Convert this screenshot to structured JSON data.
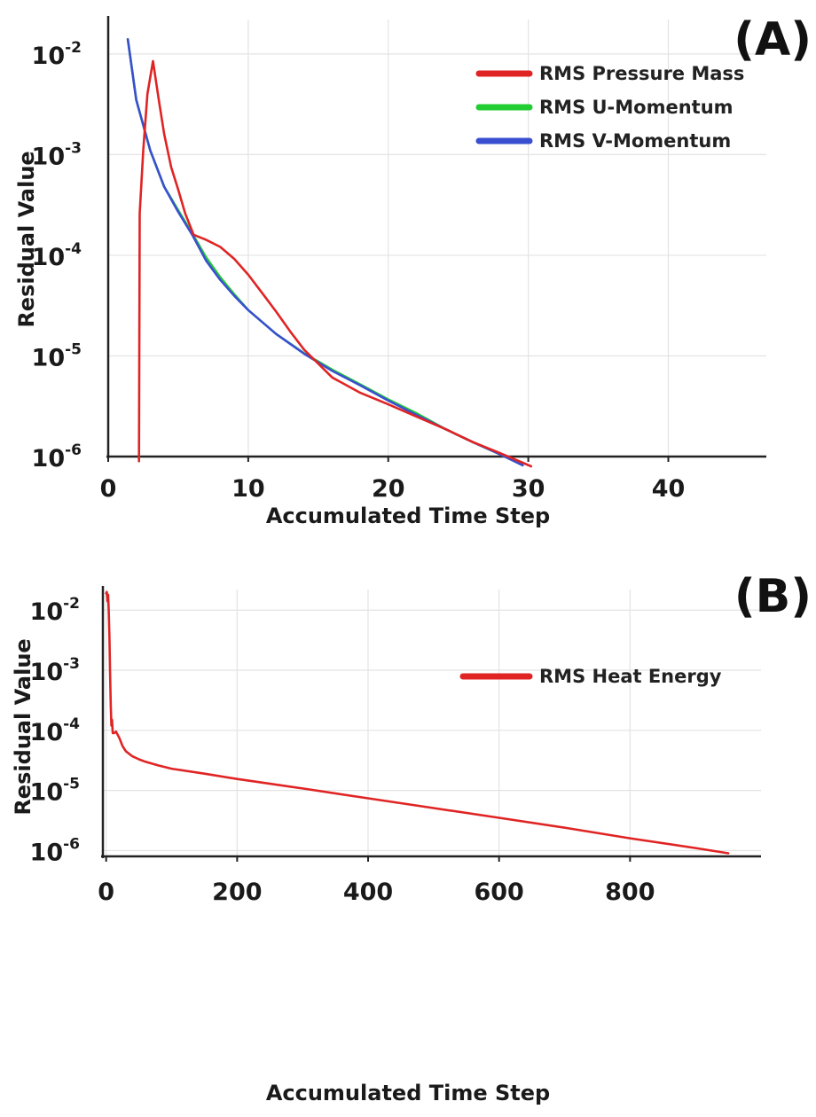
{
  "chart_data": [
    {
      "panel_label": "(A)",
      "type": "line",
      "xlabel": "Accumulated Time Step",
      "ylabel": "Residual Value",
      "xlim": [
        0,
        47
      ],
      "ylim": [
        1e-06,
        0.022
      ],
      "log_y": true,
      "grid": true,
      "legend_position": "top-right",
      "x_ticks": [
        {
          "value": 0,
          "label": "0"
        },
        {
          "value": 10,
          "label": "10"
        },
        {
          "value": 20,
          "label": "20"
        },
        {
          "value": 30,
          "label": "30"
        },
        {
          "value": 40,
          "label": "40"
        }
      ],
      "y_ticks": [
        {
          "value": 1e-06,
          "label": "10",
          "exp": "-6"
        },
        {
          "value": 1e-05,
          "label": "10",
          "exp": "-5"
        },
        {
          "value": 0.0001,
          "label": "10",
          "exp": "-4"
        },
        {
          "value": 0.001,
          "label": "10",
          "exp": "-3"
        },
        {
          "value": 0.01,
          "label": "10",
          "exp": "-2"
        }
      ],
      "series": [
        {
          "name": "RMS U-Momentum",
          "color": "#22cc33",
          "x": [
            1.4,
            2,
            3,
            4,
            5,
            6,
            7,
            8,
            9,
            10,
            12,
            14,
            16,
            18,
            20,
            22,
            24,
            26,
            28,
            29.6
          ],
          "y": [
            0.014,
            0.0035,
            0.0011,
            0.00048,
            0.00028,
            0.000165,
            9.5e-05,
            6.05e-05,
            4.1e-05,
            2.85e-05,
            1.65e-05,
            1.06e-05,
            7.3e-06,
            5.2e-06,
            3.7e-06,
            2.7e-06,
            1.9e-06,
            1.4e-06,
            1.05e-06,
            8.2e-07
          ]
        },
        {
          "name": "RMS V-Momentum",
          "color": "#3a4fd0",
          "x": [
            1.4,
            2,
            3,
            4,
            5,
            6,
            7,
            8,
            9,
            10,
            12,
            14,
            16,
            18,
            20,
            22,
            24,
            26,
            28,
            29.6
          ],
          "y": [
            0.014,
            0.0035,
            0.0011,
            0.00048,
            0.00027,
            0.00016,
            8.8e-05,
            5.7e-05,
            3.95e-05,
            2.85e-05,
            1.65e-05,
            1.05e-05,
            7.1e-06,
            5.1e-06,
            3.6e-06,
            2.6e-06,
            1.9e-06,
            1.4e-06,
            1.05e-06,
            8.2e-07
          ]
        },
        {
          "name": "RMS Pressure Mass",
          "color": "#e02424",
          "x": [
            2.2,
            2.25,
            2.5,
            2.8,
            3.2,
            3.6,
            4,
            4.5,
            5,
            5.5,
            6.1,
            7,
            8,
            9,
            10,
            11,
            12,
            13,
            14,
            16,
            18,
            20,
            22,
            24,
            26,
            28,
            30.2
          ],
          "y": [
            9e-07,
            0.00026,
            0.0011,
            0.004,
            0.0085,
            0.0036,
            0.0016,
            0.00075,
            0.00045,
            0.00026,
            0.00016,
            0.000142,
            0.000121,
            9.2e-05,
            6.4e-05,
            4.2e-05,
            2.75e-05,
            1.75e-05,
            1.15e-05,
            6.1e-06,
            4.3e-06,
            3.3e-06,
            2.5e-06,
            1.9e-06,
            1.4e-06,
            1.08e-06,
            8e-07
          ]
        }
      ]
    },
    {
      "panel_label": "(B)",
      "type": "line",
      "xlabel": "Accumulated Time Step",
      "ylabel": "Residual Value",
      "xlim": [
        -5,
        1000
      ],
      "ylim": [
        8e-07,
        0.022
      ],
      "log_y": true,
      "grid": true,
      "legend_position": "top-right",
      "x_ticks": [
        {
          "value": 0,
          "label": "0"
        },
        {
          "value": 200,
          "label": "200"
        },
        {
          "value": 400,
          "label": "400"
        },
        {
          "value": 600,
          "label": "600"
        },
        {
          "value": 800,
          "label": "800"
        }
      ],
      "y_ticks": [
        {
          "value": 1e-06,
          "label": "10",
          "exp": "-6"
        },
        {
          "value": 1e-05,
          "label": "10",
          "exp": "-5"
        },
        {
          "value": 0.0001,
          "label": "10",
          "exp": "-4"
        },
        {
          "value": 0.001,
          "label": "10",
          "exp": "-3"
        },
        {
          "value": 0.01,
          "label": "10",
          "exp": "-2"
        }
      ],
      "series": [
        {
          "name": "RMS Heat Energy",
          "color": "#e02424",
          "x": [
            0,
            1,
            2,
            3,
            4,
            5,
            6,
            7,
            8,
            9,
            10,
            12,
            15,
            20,
            25,
            30,
            40,
            50,
            60,
            80,
            100,
            150,
            200,
            300,
            400,
            500,
            600,
            700,
            800,
            900,
            950
          ],
          "y": [
            0.019,
            0.02,
            0.014,
            0.018,
            0.0095,
            0.0035,
            0.0009,
            0.00025,
            0.00012,
            0.00015,
            9e-05,
            9e-05,
            9.5e-05,
            7.5e-05,
            5.5e-05,
            4.5e-05,
            3.7e-05,
            3.3e-05,
            3e-05,
            2.6e-05,
            2.3e-05,
            1.9e-05,
            1.55e-05,
            1.08e-05,
            7.4e-06,
            5.1e-06,
            3.5e-06,
            2.4e-06,
            1.6e-06,
            1.1e-06,
            9e-07
          ]
        }
      ]
    }
  ]
}
